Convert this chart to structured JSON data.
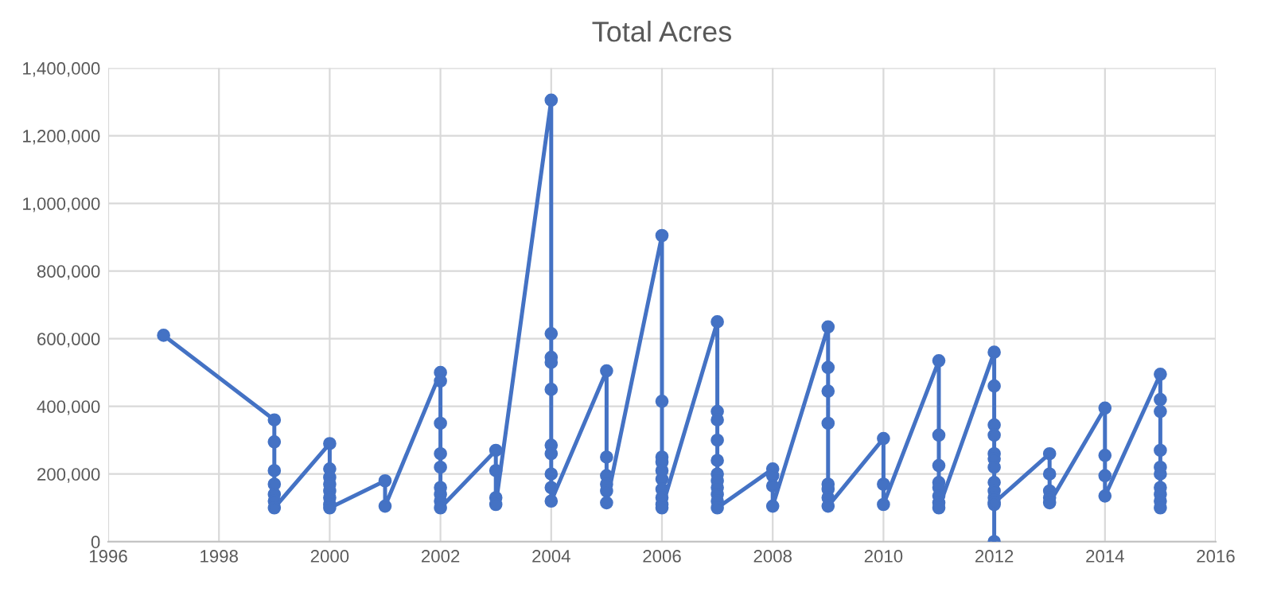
{
  "chart_data": {
    "type": "line",
    "title": "Total Acres",
    "x": [
      1997,
      1999,
      1999,
      1999,
      1999,
      1999,
      1999,
      1999,
      2000,
      2000,
      2000,
      2000,
      2000,
      2000,
      2000,
      2000,
      2001,
      2001,
      2002,
      2002,
      2002,
      2002,
      2002,
      2002,
      2002,
      2002,
      2002,
      2003,
      2003,
      2003,
      2003,
      2004,
      2004,
      2004,
      2004,
      2004,
      2004,
      2004,
      2004,
      2004,
      2004,
      2005,
      2005,
      2005,
      2005,
      2005,
      2005,
      2006,
      2006,
      2006,
      2006,
      2006,
      2006,
      2006,
      2006,
      2006,
      2006,
      2007,
      2007,
      2007,
      2007,
      2007,
      2007,
      2007,
      2007,
      2007,
      2007,
      2007,
      2008,
      2008,
      2008,
      2008,
      2009,
      2009,
      2009,
      2009,
      2009,
      2009,
      2009,
      2009,
      2010,
      2010,
      2010,
      2011,
      2011,
      2011,
      2011,
      2011,
      2011,
      2011,
      2011,
      2012,
      2012,
      2012,
      2012,
      2012,
      2012,
      2012,
      2012,
      2012,
      2012,
      2012,
      2012,
      2012,
      2013,
      2013,
      2013,
      2013,
      2013,
      2014,
      2014,
      2014,
      2014,
      2015,
      2015,
      2015,
      2015,
      2015,
      2015,
      2015,
      2015,
      2015,
      2015
    ],
    "series": [
      {
        "color": "#4472c4",
        "values": [
          610000,
          360000,
          295000,
          210000,
          170000,
          140000,
          120000,
          100000,
          290000,
          215000,
          190000,
          170000,
          150000,
          130000,
          110000,
          100000,
          180000,
          105000,
          500000,
          475000,
          350000,
          260000,
          220000,
          160000,
          140000,
          120000,
          100000,
          270000,
          210000,
          130000,
          110000,
          1305000,
          615000,
          545000,
          530000,
          450000,
          285000,
          260000,
          200000,
          160000,
          120000,
          505000,
          250000,
          195000,
          170000,
          150000,
          115000,
          905000,
          415000,
          250000,
          235000,
          210000,
          185000,
          155000,
          130000,
          110000,
          100000,
          650000,
          385000,
          360000,
          300000,
          240000,
          200000,
          180000,
          160000,
          140000,
          120000,
          100000,
          215000,
          195000,
          165000,
          105000,
          635000,
          515000,
          445000,
          350000,
          170000,
          155000,
          130000,
          105000,
          305000,
          170000,
          110000,
          535000,
          315000,
          225000,
          175000,
          160000,
          135000,
          115000,
          100000,
          560000,
          460000,
          345000,
          315000,
          260000,
          245000,
          220000,
          175000,
          150000,
          130000,
          110000,
          0,
          115000,
          260000,
          200000,
          150000,
          130000,
          115000,
          395000,
          255000,
          195000,
          135000,
          495000,
          420000,
          385000,
          270000,
          220000,
          200000,
          160000,
          140000,
          120000,
          100000
        ]
      }
    ],
    "xlim": [
      1996,
      2016
    ],
    "xticks": [
      1996,
      1998,
      2000,
      2002,
      2004,
      2006,
      2008,
      2010,
      2012,
      2014,
      2016
    ],
    "ylim": [
      0,
      1400000
    ],
    "yticks": [
      {
        "value": 0,
        "label": "0"
      },
      {
        "value": 200000,
        "label": "200,000"
      },
      {
        "value": 400000,
        "label": "400,000"
      },
      {
        "value": 600000,
        "label": "600,000"
      },
      {
        "value": 800000,
        "label": "800,000"
      },
      {
        "value": 1000000,
        "label": "1,000,000"
      },
      {
        "value": 1200000,
        "label": "1,200,000"
      },
      {
        "value": 1400000,
        "label": "1,400,000"
      }
    ],
    "grid": true,
    "marker": "circle",
    "line_style": "solid"
  }
}
